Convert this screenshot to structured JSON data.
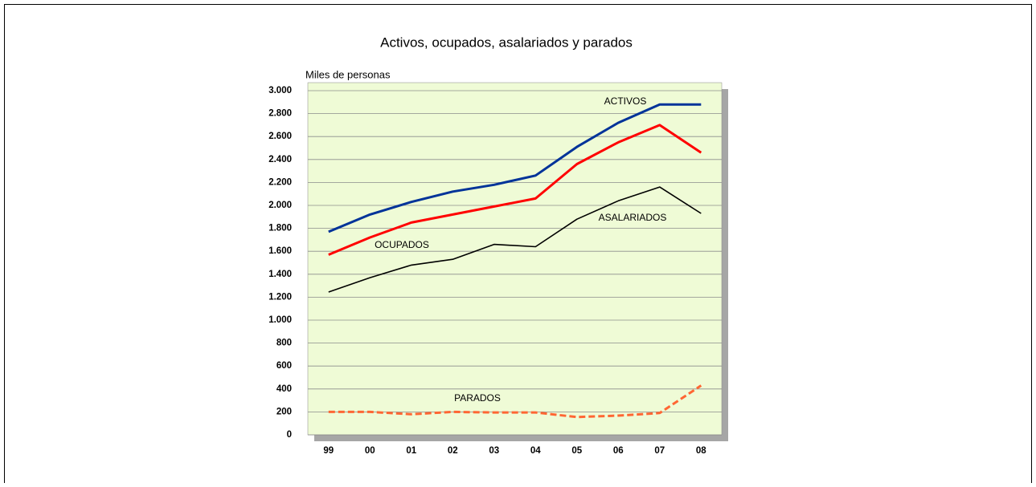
{
  "chart_data": {
    "type": "line",
    "title": "Activos, ocupados, asalariados y parados",
    "y_label": "Miles de personas",
    "categories": [
      "99",
      "00",
      "01",
      "02",
      "03",
      "04",
      "05",
      "06",
      "07",
      "08"
    ],
    "series": [
      {
        "name": "ACTIVOS",
        "color": "#003399",
        "line_style": "solid",
        "values": [
          1770,
          1920,
          2030,
          2120,
          2180,
          2260,
          2510,
          2720,
          2880,
          2880
        ]
      },
      {
        "name": "OCUPADOS",
        "color": "#ff0000",
        "line_style": "solid",
        "values": [
          1570,
          1720,
          1850,
          1920,
          1990,
          2060,
          2360,
          2550,
          2700,
          2460
        ]
      },
      {
        "name": "ASALARIADOS",
        "color": "#000000",
        "line_style": "solid",
        "values": [
          1245,
          1370,
          1480,
          1530,
          1660,
          1640,
          1880,
          2040,
          2160,
          1930
        ]
      },
      {
        "name": "PARADOS",
        "color": "#ff6633",
        "line_style": "dashed",
        "values": [
          200,
          200,
          180,
          200,
          195,
          195,
          155,
          168,
          190,
          430
        ]
      }
    ],
    "ylim": [
      0,
      3000
    ],
    "yticks": [
      0,
      200,
      400,
      600,
      800,
      {
        "value": 1000,
        "label": "1.000"
      },
      {
        "value": 1200,
        "label": "1.200"
      },
      {
        "value": 1400,
        "label": "1.400"
      },
      {
        "value": 1600,
        "label": "1.600"
      },
      {
        "value": 1800,
        "label": "1.800"
      },
      {
        "value": 2000,
        "label": "2.000"
      },
      {
        "value": 2200,
        "label": "2.200"
      },
      {
        "value": 2400,
        "label": "2.400"
      },
      {
        "value": 2600,
        "label": "2.600"
      },
      {
        "value": 2800,
        "label": "2.800"
      },
      {
        "value": 3000,
        "label": "3.000"
      }
    ],
    "grid": true,
    "plot_background": "#effbd6"
  }
}
